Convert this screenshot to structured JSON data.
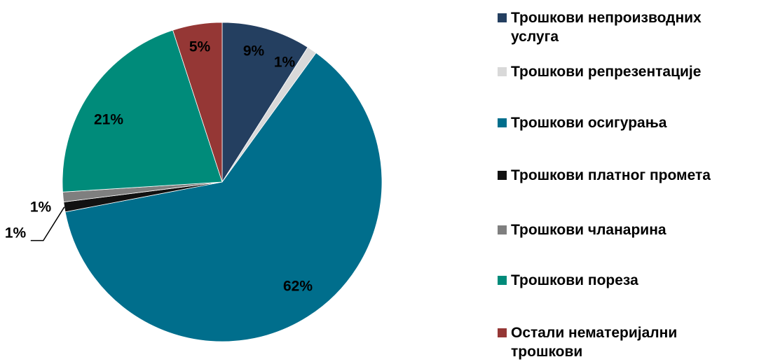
{
  "chart_data": {
    "type": "pie",
    "categories": [
      "Трошкови непроизводних услуга",
      "Трошкови репрезентације",
      "Трошкови осигурања",
      "Трошкови платног промета",
      "Трошкови чланарина",
      "Трошкови пореза",
      "Остали нематеријални трошкови"
    ],
    "values": [
      9,
      1,
      62,
      1,
      1,
      21,
      5
    ],
    "value_labels": [
      "9%",
      "1%",
      "62%",
      "1%",
      "1%",
      "21%",
      "5%"
    ],
    "colors": [
      "#243f60",
      "#d9d9d9",
      "#006e8c",
      "#111111",
      "#7f7f7f",
      "#008b7a",
      "#953735"
    ],
    "legend": "right"
  }
}
